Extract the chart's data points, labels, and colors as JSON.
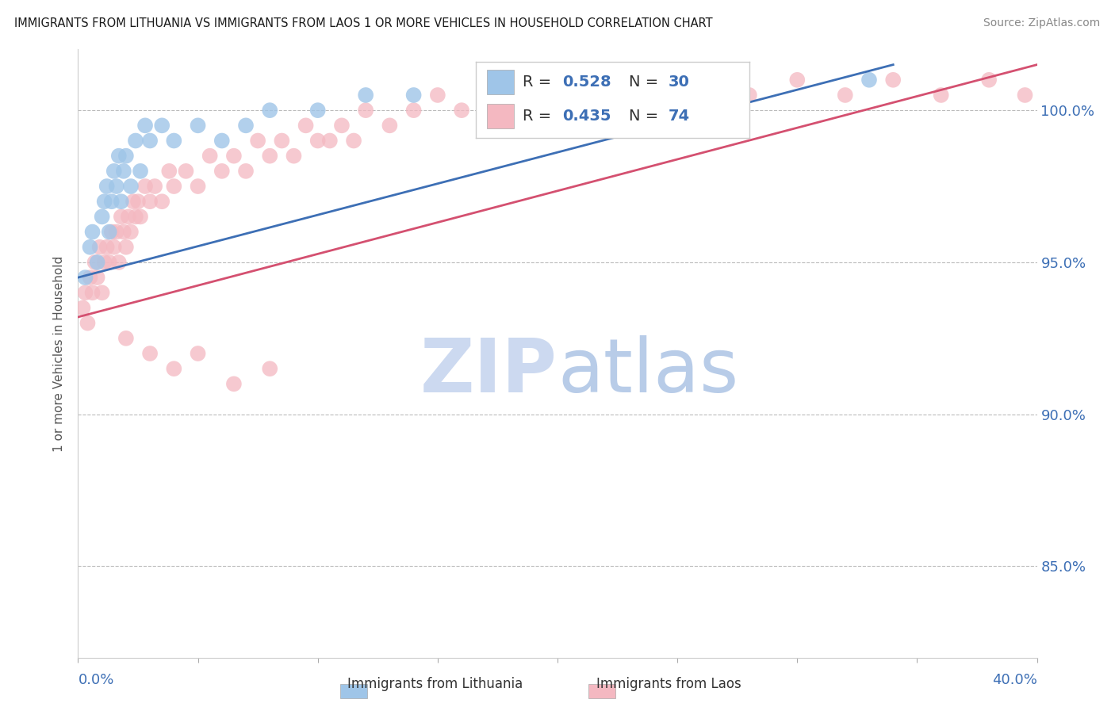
{
  "title": "IMMIGRANTS FROM LITHUANIA VS IMMIGRANTS FROM LAOS 1 OR MORE VEHICLES IN HOUSEHOLD CORRELATION CHART",
  "source": "Source: ZipAtlas.com",
  "legend_lithuania": "Immigrants from Lithuania",
  "legend_laos": "Immigrants from Laos",
  "R_lithuania": 0.528,
  "N_lithuania": 30,
  "R_laos": 0.435,
  "N_laos": 74,
  "color_lithuania": "#9fc5e8",
  "color_laos": "#f4b8c1",
  "color_trendline_lithuania": "#3d6fb5",
  "color_trendline_laos": "#d45070",
  "watermark_zip_color": "#ccd9f0",
  "watermark_atlas_color": "#b8cce8",
  "xmin": 0.0,
  "xmax": 40.0,
  "ymin": 82.0,
  "ymax": 102.0,
  "y_ticks": [
    85.0,
    90.0,
    95.0,
    100.0
  ],
  "ylabel": "1 or more Vehicles in Household",
  "lith_x": [
    0.3,
    0.5,
    0.6,
    0.8,
    1.0,
    1.1,
    1.2,
    1.3,
    1.4,
    1.5,
    1.6,
    1.7,
    1.8,
    1.9,
    2.0,
    2.2,
    2.4,
    2.6,
    2.8,
    3.0,
    3.5,
    4.0,
    5.0,
    6.0,
    7.0,
    8.0,
    10.0,
    12.0,
    14.0,
    33.0
  ],
  "lith_y": [
    94.5,
    95.5,
    96.0,
    95.0,
    96.5,
    97.0,
    97.5,
    96.0,
    97.0,
    98.0,
    97.5,
    98.5,
    97.0,
    98.0,
    98.5,
    97.5,
    99.0,
    98.0,
    99.5,
    99.0,
    99.5,
    99.0,
    99.5,
    99.0,
    99.5,
    100.0,
    100.0,
    100.5,
    100.5,
    101.0
  ],
  "laos_x": [
    0.2,
    0.3,
    0.4,
    0.5,
    0.6,
    0.7,
    0.8,
    0.9,
    1.0,
    1.1,
    1.2,
    1.3,
    1.4,
    1.5,
    1.6,
    1.7,
    1.8,
    1.9,
    2.0,
    2.1,
    2.2,
    2.3,
    2.4,
    2.5,
    2.6,
    2.8,
    3.0,
    3.2,
    3.5,
    3.8,
    4.0,
    4.5,
    5.0,
    5.5,
    6.0,
    6.5,
    7.0,
    7.5,
    8.0,
    8.5,
    9.0,
    9.5,
    10.0,
    10.5,
    11.0,
    11.5,
    12.0,
    13.0,
    14.0,
    15.0,
    16.0,
    17.0,
    18.0,
    19.0,
    20.0,
    21.0,
    22.0,
    23.0,
    24.0,
    25.0,
    26.0,
    28.0,
    30.0,
    32.0,
    34.0,
    36.0,
    38.0,
    39.5,
    2.0,
    3.0,
    4.0,
    5.0,
    6.5,
    8.0
  ],
  "laos_y": [
    93.5,
    94.0,
    93.0,
    94.5,
    94.0,
    95.0,
    94.5,
    95.5,
    94.0,
    95.0,
    95.5,
    95.0,
    96.0,
    95.5,
    96.0,
    95.0,
    96.5,
    96.0,
    95.5,
    96.5,
    96.0,
    97.0,
    96.5,
    97.0,
    96.5,
    97.5,
    97.0,
    97.5,
    97.0,
    98.0,
    97.5,
    98.0,
    97.5,
    98.5,
    98.0,
    98.5,
    98.0,
    99.0,
    98.5,
    99.0,
    98.5,
    99.5,
    99.0,
    99.0,
    99.5,
    99.0,
    100.0,
    99.5,
    100.0,
    100.5,
    100.0,
    100.5,
    100.0,
    100.5,
    100.0,
    100.5,
    101.0,
    100.5,
    101.0,
    100.0,
    101.0,
    100.5,
    101.0,
    100.5,
    101.0,
    100.5,
    101.0,
    100.5,
    92.5,
    92.0,
    91.5,
    92.0,
    91.0,
    91.5
  ],
  "lith_trend_x0": 0.0,
  "lith_trend_y0": 94.5,
  "lith_trend_x1": 34.0,
  "lith_trend_y1": 101.5,
  "laos_trend_x0": 0.0,
  "laos_trend_y0": 93.2,
  "laos_trend_x1": 40.0,
  "laos_trend_y1": 101.5
}
